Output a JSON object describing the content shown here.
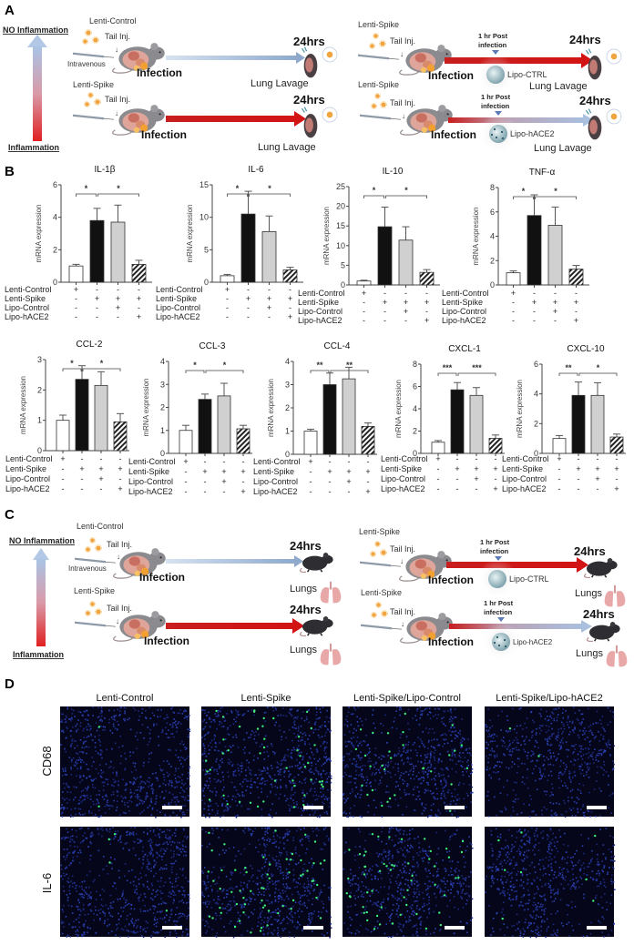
{
  "panel_a": {
    "label": "A",
    "no_inflammation": "NO Inflammation",
    "inflammation": "Inflammation",
    "lenti_control": "Lenti-Control",
    "lenti_spike": "Lenti-Spike",
    "tail_inj": "Tail Inj.",
    "intravenous": "Intravenous",
    "infection": "Infection",
    "time": "24hrs",
    "readout": "Lung Lavage",
    "post_line1": "1 hr Post",
    "post_line2": "infection",
    "lipo_ctrl": "Lipo-CTRL",
    "lipo_hace2": "Lipo-hACE2"
  },
  "panel_b": {
    "label": "B",
    "condition_rows": [
      "Lenti-Control",
      "Lenti-Spike",
      "Lipo-Control",
      "Lipo-hACE2"
    ],
    "condition_signs": [
      [
        "+",
        "-",
        "-",
        "-"
      ],
      [
        "-",
        "+",
        "+",
        "+"
      ],
      [
        "-",
        "-",
        "+",
        "-"
      ],
      [
        "-",
        "-",
        "-",
        "+"
      ]
    ]
  },
  "panel_c": {
    "label": "C",
    "no_inflammation": "NO Inflammation",
    "inflammation": "Inflammation",
    "lenti_control": "Lenti-Control",
    "lenti_spike": "Lenti-Spike",
    "tail_inj": "Tail Inj.",
    "intravenous": "Intravenous",
    "infection": "Infection",
    "time": "24hrs",
    "readout": "Lungs",
    "post_line1": "1 hr Post",
    "post_line2": "infection",
    "lipo_ctrl": "Lipo-CTRL",
    "lipo_hace2": "Lipo-hACE2"
  },
  "panel_d": {
    "label": "D",
    "columns": [
      "Lenti-Control",
      "Lenti-Spike",
      "Lenti-Spike/Lipo-Control",
      "Lenti-Spike/Lipo-hACE2"
    ],
    "rows": [
      "CD68",
      "IL-6"
    ]
  },
  "colors": {
    "bar_fills": [
      "#ffffff",
      "#111111",
      "#d0d0d0",
      "hatched"
    ],
    "nucleus_blue": "#2a3fb0",
    "stain_green": "#3cf07a",
    "inflammation_red": "#e02020",
    "no_inflammation_blue": "#a9c4e6"
  },
  "chart_data": [
    {
      "type": "bar",
      "title": "IL-1β",
      "ylabel": "mRNA expression",
      "ylim": [
        0,
        6
      ],
      "yticks": [
        0,
        2,
        4,
        6
      ],
      "values": [
        1.0,
        3.8,
        3.7,
        1.1
      ],
      "errors": [
        0.1,
        0.75,
        1.05,
        0.25
      ],
      "significance": [
        "*",
        "*"
      ]
    },
    {
      "type": "bar",
      "title": "IL-6",
      "ylabel": "mRNA expression",
      "ylim": [
        0,
        15
      ],
      "yticks": [
        0,
        5,
        10,
        15
      ],
      "values": [
        1.0,
        10.5,
        7.8,
        1.9
      ],
      "errors": [
        0.2,
        3.5,
        2.4,
        0.4
      ],
      "significance": [
        "*",
        "*"
      ]
    },
    {
      "type": "bar",
      "title": "IL-10",
      "ylabel": "mRNA expression",
      "ylim": [
        0,
        25
      ],
      "yticks": [
        0,
        5,
        10,
        15,
        20,
        25
      ],
      "values": [
        1.0,
        14.8,
        11.4,
        3.2
      ],
      "errors": [
        0.2,
        5.0,
        3.4,
        0.7
      ],
      "significance": [
        "*",
        "*"
      ]
    },
    {
      "type": "bar",
      "title": "TNF-α",
      "ylabel": "mRNA expression",
      "ylim": [
        0,
        8
      ],
      "yticks": [
        0,
        2,
        4,
        6,
        8
      ],
      "values": [
        1.0,
        5.7,
        4.9,
        1.3
      ],
      "errors": [
        0.15,
        1.7,
        1.5,
        0.3
      ],
      "significance": [
        "*",
        "*"
      ]
    },
    {
      "type": "bar",
      "title": "CCL-2",
      "ylabel": "mRNA expression",
      "ylim": [
        0,
        3
      ],
      "yticks": [
        0,
        1,
        2,
        3
      ],
      "values": [
        1.0,
        2.35,
        2.15,
        0.95
      ],
      "errors": [
        0.17,
        0.45,
        0.45,
        0.27
      ],
      "significance": [
        "*",
        "*"
      ]
    },
    {
      "type": "bar",
      "title": "CCL-3",
      "ylabel": "mRNA expression",
      "ylim": [
        0,
        4
      ],
      "yticks": [
        0,
        1,
        2,
        3,
        4
      ],
      "values": [
        1.0,
        2.35,
        2.5,
        1.07
      ],
      "errors": [
        0.22,
        0.23,
        0.55,
        0.15
      ],
      "significance": [
        "*",
        "*"
      ]
    },
    {
      "type": "bar",
      "title": "CCL-4",
      "ylabel": "mRNA expression",
      "ylim": [
        0,
        4
      ],
      "yticks": [
        0,
        1,
        2,
        3,
        4
      ],
      "values": [
        1.0,
        3.0,
        3.25,
        1.2
      ],
      "errors": [
        0.08,
        0.5,
        0.5,
        0.15
      ],
      "significance": [
        "**",
        "**"
      ]
    },
    {
      "type": "bar",
      "title": "CXCL-1",
      "ylabel": "mRNA expression",
      "ylim": [
        0,
        8
      ],
      "yticks": [
        0,
        2,
        4,
        6,
        8
      ],
      "values": [
        1.0,
        5.7,
        5.2,
        1.35
      ],
      "errors": [
        0.15,
        0.65,
        0.7,
        0.3
      ],
      "significance": [
        "***",
        "***"
      ]
    },
    {
      "type": "bar",
      "title": "CXCL-10",
      "ylabel": "mRNA expression",
      "ylim": [
        0,
        6
      ],
      "yticks": [
        0,
        2,
        4,
        6
      ],
      "values": [
        1.0,
        3.9,
        3.9,
        1.1
      ],
      "errors": [
        0.2,
        0.9,
        0.85,
        0.2
      ],
      "significance": [
        "**",
        "*"
      ]
    }
  ]
}
